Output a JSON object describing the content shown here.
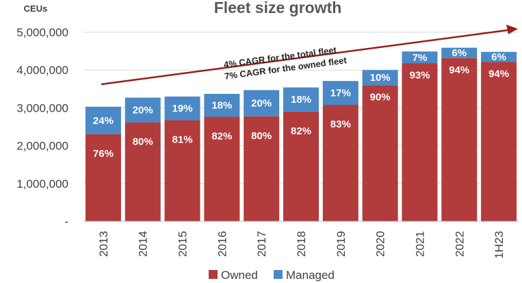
{
  "chart_data": {
    "type": "bar",
    "stacked": true,
    "title": "Fleet size growth",
    "unit_label": "CEUs",
    "categories": [
      "2013",
      "2014",
      "2015",
      "2016",
      "2017",
      "2018",
      "2019",
      "2020",
      "2021",
      "2022",
      "1H23"
    ],
    "totals": [
      3030000,
      3270000,
      3300000,
      3370000,
      3470000,
      3540000,
      3710000,
      4000000,
      4490000,
      4590000,
      4480000
    ],
    "series": [
      {
        "name": "Owned",
        "color": "#b23b3b",
        "share_labels": [
          "76%",
          "80%",
          "81%",
          "82%",
          "80%",
          "82%",
          "83%",
          "90%",
          "93%",
          "94%",
          "94%"
        ]
      },
      {
        "name": "Managed",
        "color": "#4a89c6",
        "share_labels": [
          "24%",
          "20%",
          "19%",
          "18%",
          "20%",
          "18%",
          "17%",
          "10%",
          "7%",
          "6%",
          "6%"
        ]
      }
    ],
    "ylim": [
      0,
      5000000
    ],
    "yticks": [
      "-",
      "1,000,000",
      "2,000,000",
      "3,000,000",
      "4,000,000",
      "5,000,000"
    ],
    "grid": true,
    "legend_position": "bottom",
    "annotations": [
      "4% CAGR for the total fleet",
      "7% CAGR for the owned fleet"
    ],
    "arrow_color": "#9b1c1c"
  }
}
